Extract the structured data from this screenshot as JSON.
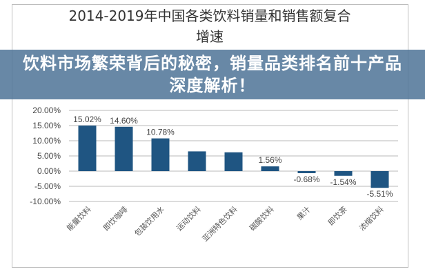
{
  "chart_data": {
    "type": "bar",
    "title": "2014-2019年中国各类饮料销量和销售额复合增速",
    "categories": [
      "能量饮料",
      "即饮咖啡",
      "包装饮用水",
      "运动饮料",
      "亚洲特色饮料",
      "碳酸饮料",
      "果汁",
      "即饮茶",
      "浓缩饮料"
    ],
    "values": [
      15.02,
      14.6,
      10.78,
      6.5,
      6.2,
      1.56,
      -0.68,
      -1.54,
      -5.51
    ],
    "data_labels": [
      "15.02%",
      "14.60%",
      "10.78%",
      "",
      "",
      "1.56%",
      "-0.68%",
      "-1.54%",
      "-5.51%"
    ],
    "yticks": [
      "20.00%",
      "15.00%",
      "10.00%",
      "5.00%",
      "0.00%",
      "-5.00%",
      "-10.00%"
    ],
    "ylim": [
      -10,
      20
    ],
    "xlabel": "",
    "ylabel": "",
    "grid": true,
    "legend": "none",
    "bar_color": "#1f5582"
  },
  "banner": {
    "text": "饮料市场繁荣背后的秘密，销量品类排名前十产品深度解析！"
  }
}
